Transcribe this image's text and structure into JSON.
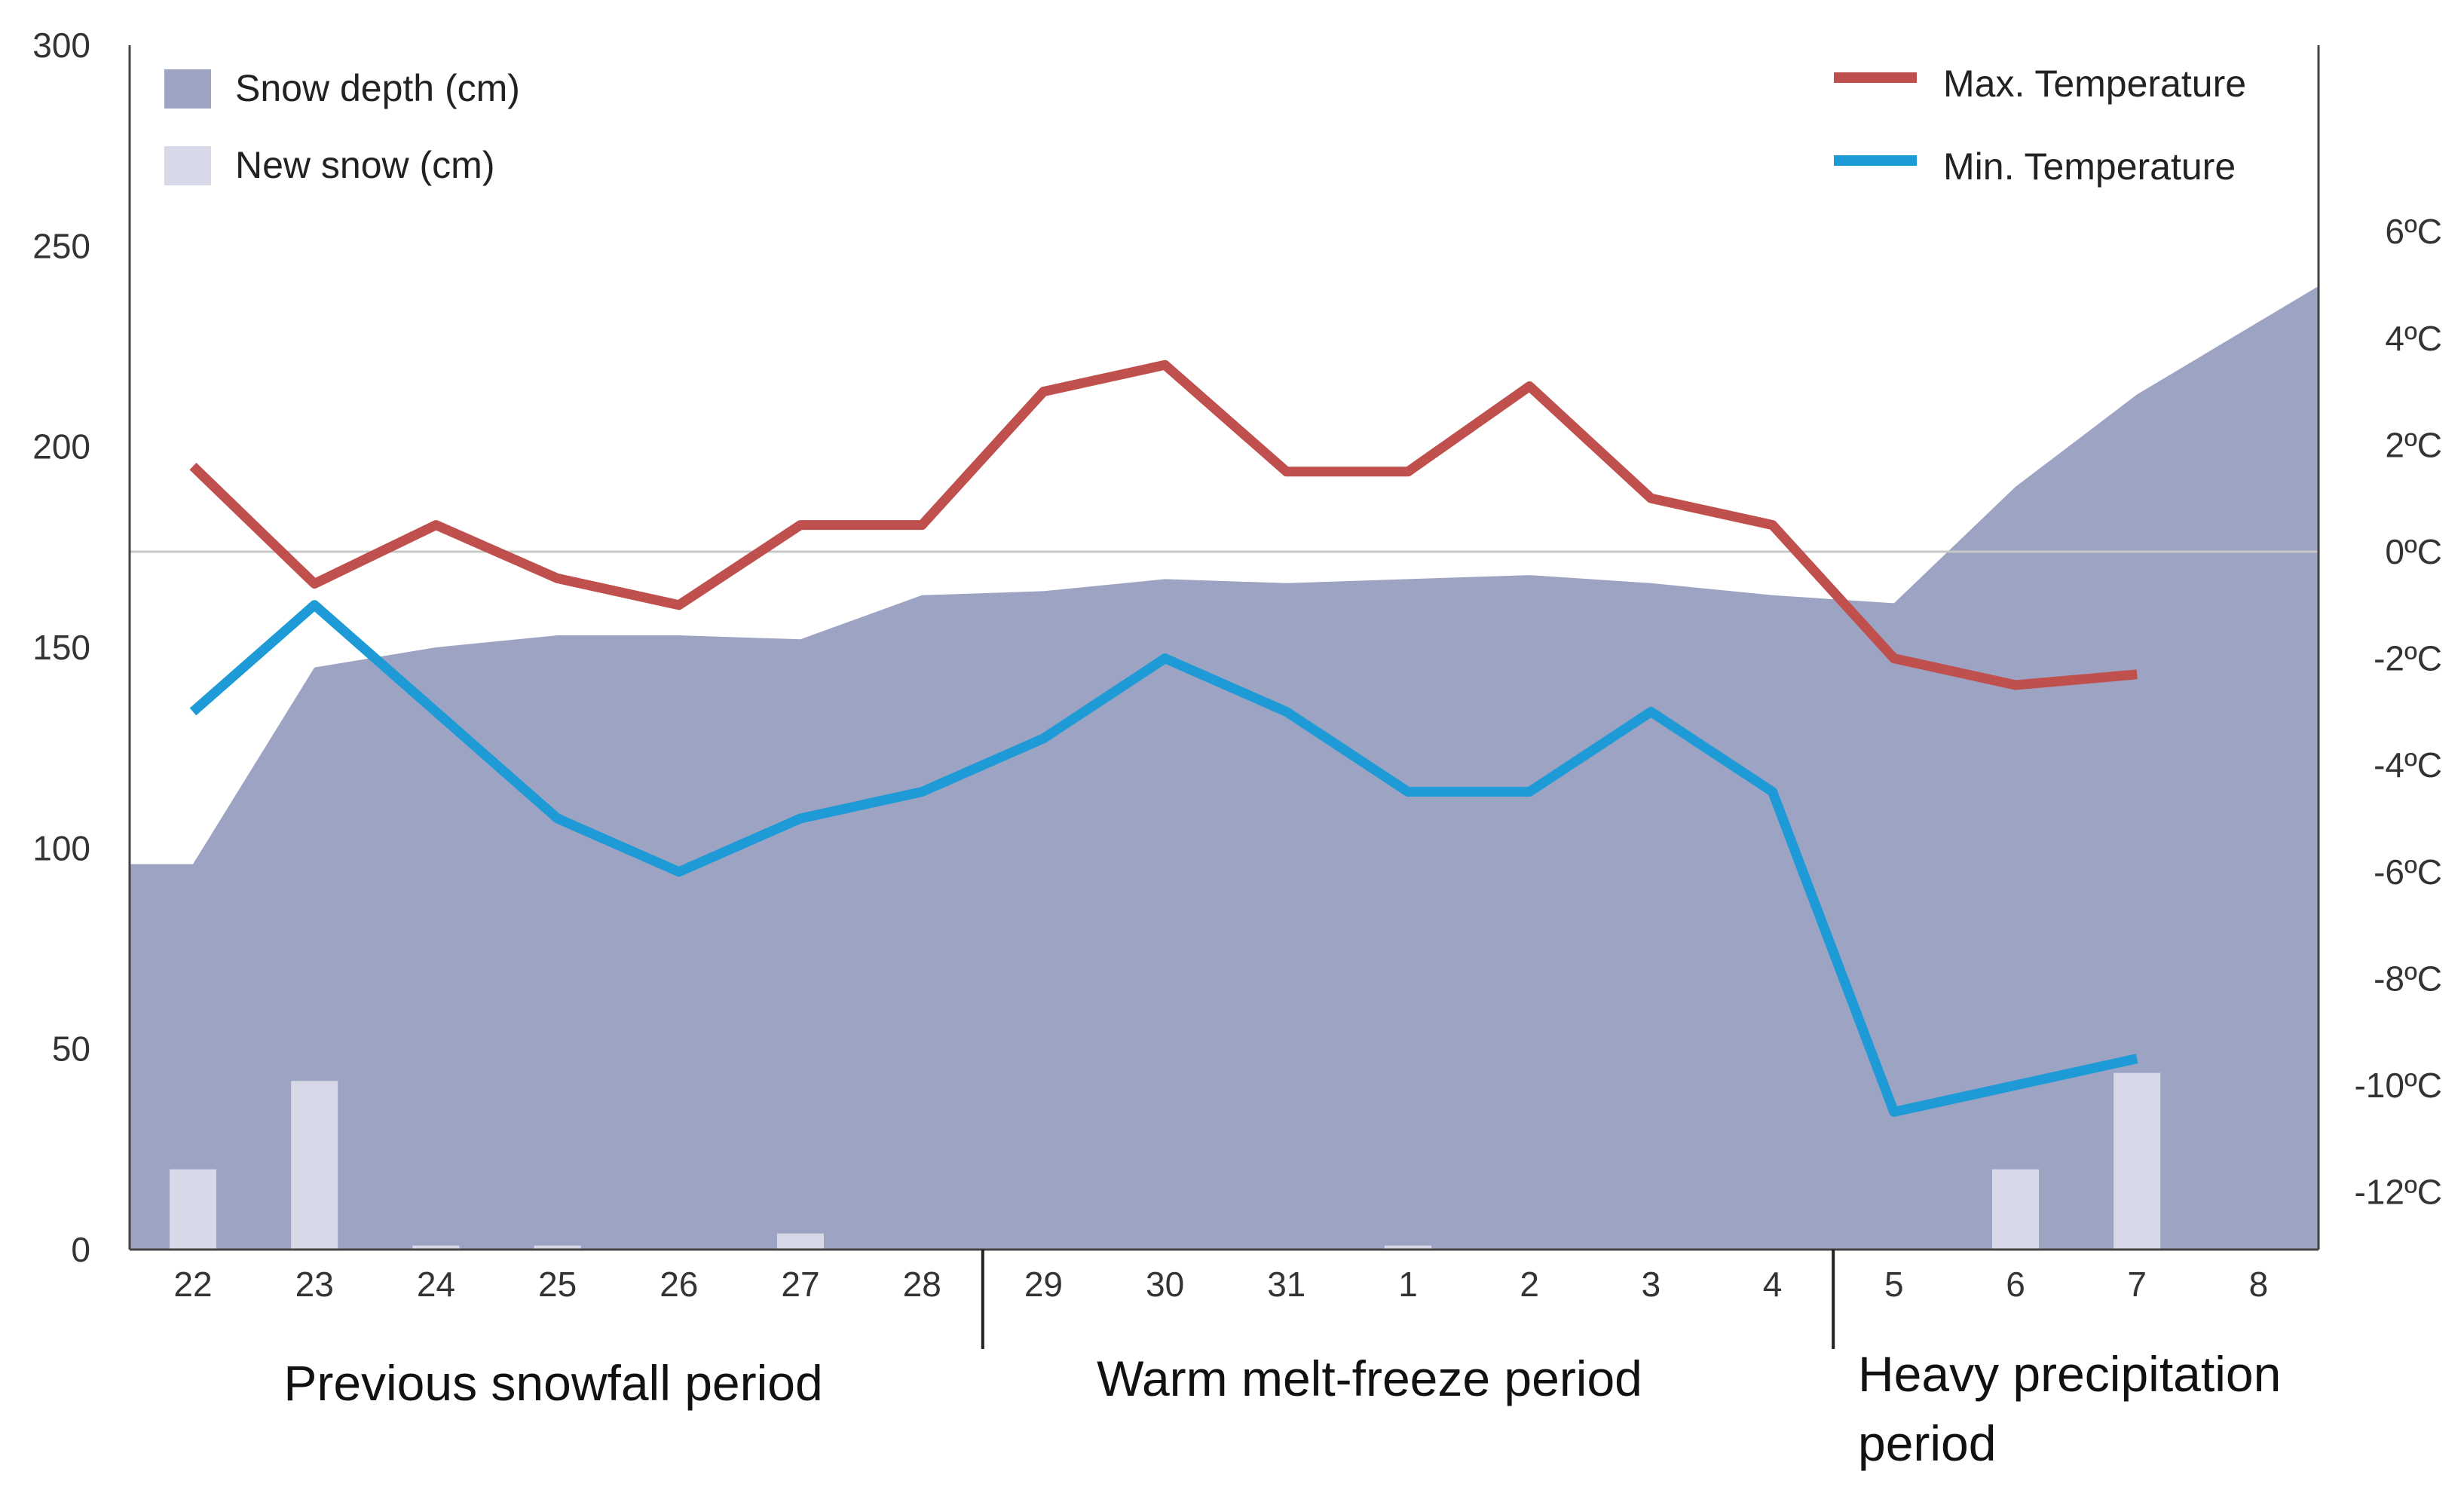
{
  "chart_data": {
    "type": "area+bar+line",
    "x": [
      "22",
      "23",
      "24",
      "25",
      "26",
      "27",
      "28",
      "29",
      "30",
      "31",
      "1",
      "2",
      "3",
      "4",
      "5",
      "6",
      "7",
      "8"
    ],
    "y_left": {
      "ticks": [
        0,
        50,
        100,
        150,
        200,
        250,
        300
      ],
      "ylim": [
        0,
        300
      ]
    },
    "y_right": {
      "ticks": [
        6,
        4,
        2,
        0,
        -2,
        -4,
        -6,
        -8,
        -10,
        -12
      ],
      "tick_labels": [
        "6ºC",
        "4ºC",
        "2ºC",
        "0ºC",
        "-2ºC",
        "-4ºC",
        "-6ºC",
        "-8ºC",
        "-10ºC",
        "-12ºC"
      ]
    },
    "legend": {
      "snow_depth": "Snow depth (cm)",
      "new_snow": "New snow (cm)",
      "max_temp": "Max. Temperature",
      "min_temp": "Min. Temperature"
    },
    "series": [
      {
        "name": "Snow depth (cm)",
        "kind": "area",
        "values": [
          96,
          145,
          150,
          153,
          153,
          152,
          163,
          164,
          167,
          166,
          167,
          168,
          166,
          163,
          161,
          190,
          213,
          240
        ]
      },
      {
        "name": "New snow (cm)",
        "kind": "bar",
        "values": [
          20,
          42,
          1,
          1,
          0,
          4,
          0,
          0,
          0,
          0,
          1,
          0,
          0,
          0,
          0,
          20,
          44,
          0
        ]
      },
      {
        "name": "Max. Temperature",
        "kind": "line",
        "values": [
          1.6,
          -0.6,
          0.5,
          -0.5,
          -1.0,
          0.5,
          0.5,
          3.0,
          3.5,
          1.5,
          1.5,
          3.1,
          1.0,
          0.5,
          -2.0,
          -2.5,
          -2.3,
          null
        ]
      },
      {
        "name": "Min. Temperature",
        "kind": "line",
        "values": [
          -3.0,
          -1.0,
          -3.0,
          -5.0,
          -6.0,
          -5.0,
          -4.5,
          -3.5,
          -2.0,
          -3.0,
          -4.5,
          -4.5,
          -3.0,
          -4.5,
          -10.5,
          -10.0,
          -9.5,
          null
        ]
      }
    ],
    "periods": [
      "Previous snowfall period",
      "Warm melt-freeze period",
      "Heavy precipitation",
      "period"
    ],
    "colors": {
      "snow_depth": "#9da3c2",
      "new_snow": "#d7d9e8",
      "max_temp": "#c0504d",
      "min_temp": "#1e9bd7",
      "zero_line": "#c8c8c8",
      "axis": "#444444"
    },
    "grid": false
  }
}
